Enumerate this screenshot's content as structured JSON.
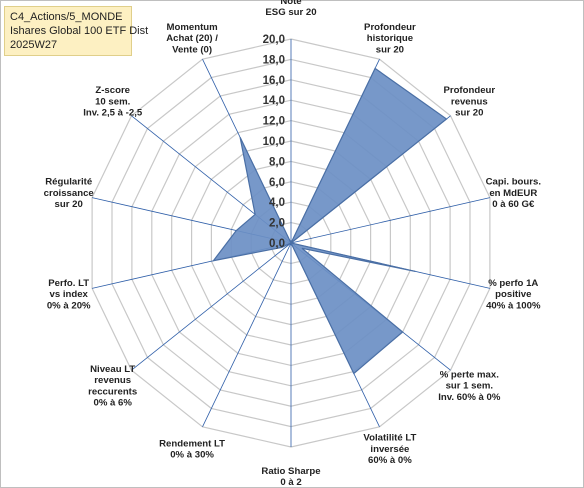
{
  "info_box": {
    "line1": "C4_Actions/5_MONDE",
    "line2": "Ishares Global 100 ETF Dist",
    "line3": "2025W27"
  },
  "chart_data": {
    "type": "radar",
    "rmin": 0,
    "rmax": 20,
    "tick_step": 2,
    "tick_labels": [
      "0,0",
      "2,0",
      "4,0",
      "6,0",
      "8,0",
      "10,0",
      "12,0",
      "14,0",
      "16,0",
      "18,0",
      "20,0"
    ],
    "grid": true,
    "fill_color": "#6b8fc4",
    "stroke_color": "#4a6fa5",
    "grid_color": "#c8c8c8",
    "spoke_color": "#2e5ea8",
    "axes": [
      {
        "label": [
          "Note",
          "ESG sur 20"
        ],
        "value": 0
      },
      {
        "label": [
          "Profondeur",
          "historique",
          "sur 20"
        ],
        "value": 19
      },
      {
        "label": [
          "Profondeur",
          "revenus",
          "sur 20"
        ],
        "value": 19.5
      },
      {
        "label": [
          "Capi. bours.",
          "en MdEUR",
          "0 à 60 G€"
        ],
        "value": 0
      },
      {
        "label": [
          "% perfo 1A",
          "positive",
          "40% à 100%"
        ],
        "value": 12.5
      },
      {
        "label": [
          "% perte max.",
          "sur 1 sem.",
          "Inv. 60% à 0%"
        ],
        "value": 14
      },
      {
        "label": [
          "Volatilité LT",
          "inversée",
          "60% à 0%"
        ],
        "value": 14.2
      },
      {
        "label": [
          "Ratio Sharpe",
          "0 à 2"
        ],
        "value": 0
      },
      {
        "label": [
          "Rendement LT",
          "0% à 30%"
        ],
        "value": 0
      },
      {
        "label": [
          "Niveau LT",
          "revenus",
          "reccurents",
          "0% à 6%"
        ],
        "value": 0
      },
      {
        "label": [
          "Perfo. LT",
          "vs index",
          "0% à 20%"
        ],
        "value": 7.8
      },
      {
        "label": [
          "Régularité",
          "croissance",
          "sur 20"
        ],
        "value": 5.5
      },
      {
        "label": [
          "Z-score",
          "10 sem.",
          "Inv. 2,5 à -2,5"
        ],
        "value": 4.5
      },
      {
        "label": [
          "Momentum",
          "Achat (20) /",
          "Vente (0)"
        ],
        "value": 11.5
      }
    ],
    "extra_inner_points": [
      {
        "between": [
          4,
          5
        ],
        "value": 1.2
      },
      {
        "between": [
          9,
          10
        ],
        "value": 1.0
      }
    ]
  }
}
